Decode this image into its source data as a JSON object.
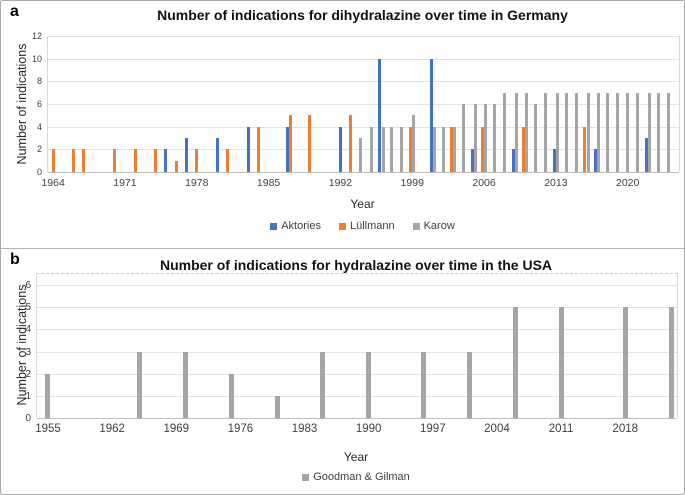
{
  "figure": {
    "panel_a_label": "a",
    "panel_b_label": "b"
  },
  "chart_data": [
    {
      "id": "germany",
      "type": "bar",
      "title": "Number of indications for dihydralazine over time in Germany",
      "xlabel": "Year",
      "ylabel": "Number of indications",
      "xlim": [
        1963.5,
        2025.0
      ],
      "ylim": [
        0,
        12
      ],
      "y_ticks": [
        0,
        2,
        4,
        6,
        8,
        10,
        12
      ],
      "x_ticks": [
        1964,
        1971,
        1978,
        1985,
        1992,
        1999,
        2006,
        2013,
        2020
      ],
      "grid": true,
      "legend_position": "bottom",
      "series": [
        {
          "name": "Aktories",
          "color": "#4472C4",
          "points": [
            [
              1975,
              2
            ],
            [
              1977,
              3
            ],
            [
              1980,
              3
            ],
            [
              1983,
              4
            ],
            [
              1987,
              4
            ],
            [
              1992,
              4
            ],
            [
              1996,
              10
            ],
            [
              2001,
              10
            ],
            [
              2005,
              2
            ],
            [
              2009,
              2
            ],
            [
              2013,
              2
            ],
            [
              2017,
              2
            ],
            [
              2022,
              3
            ]
          ]
        },
        {
          "name": "Lüllmann",
          "color": "#ED7D31",
          "points": [
            [
              1964,
              2
            ],
            [
              1966,
              2
            ],
            [
              1967,
              2
            ],
            [
              1970,
              2
            ],
            [
              1972,
              2
            ],
            [
              1974,
              2
            ],
            [
              1976,
              1
            ],
            [
              1978,
              2
            ],
            [
              1981,
              2
            ],
            [
              1984,
              4
            ],
            [
              1987,
              5
            ],
            [
              1989,
              5
            ],
            [
              1993,
              5
            ],
            [
              1999,
              4
            ],
            [
              2003,
              4
            ],
            [
              2006,
              4
            ],
            [
              2010,
              4
            ],
            [
              2016,
              4
            ]
          ]
        },
        {
          "name": "Karow",
          "color": "#A5A5A5",
          "points": [
            [
              1994,
              3
            ],
            [
              1995,
              4
            ],
            [
              1996,
              4
            ],
            [
              1997,
              4
            ],
            [
              1998,
              4
            ],
            [
              1999,
              5
            ],
            [
              2001,
              4
            ],
            [
              2002,
              4
            ],
            [
              2003,
              4
            ],
            [
              2004,
              6
            ],
            [
              2005,
              6
            ],
            [
              2006,
              6
            ],
            [
              2007,
              6
            ],
            [
              2008,
              7
            ],
            [
              2009,
              7
            ],
            [
              2010,
              7
            ],
            [
              2011,
              6
            ],
            [
              2012,
              7
            ],
            [
              2013,
              7
            ],
            [
              2014,
              7
            ],
            [
              2015,
              7
            ],
            [
              2016,
              7
            ],
            [
              2017,
              7
            ],
            [
              2018,
              7
            ],
            [
              2019,
              7
            ],
            [
              2020,
              7
            ],
            [
              2021,
              7
            ],
            [
              2022,
              7
            ],
            [
              2023,
              7
            ],
            [
              2024,
              7
            ]
          ]
        }
      ]
    },
    {
      "id": "usa",
      "type": "bar",
      "title": "Number of indications for hydralazine over time in the USA",
      "xlabel": "Year",
      "ylabel": "Number of indications",
      "xlim": [
        1953.8,
        2023.65
      ],
      "ylim": [
        0,
        6
      ],
      "y_ticks": [
        0,
        1,
        2,
        3,
        4,
        5,
        6
      ],
      "x_ticks": [
        1955,
        1962,
        1969,
        1976,
        1983,
        1990,
        1997,
        2004,
        2011,
        2018
      ],
      "grid": true,
      "legend_position": "bottom",
      "series": [
        {
          "name": "Goodman & Gilman",
          "color": "#A5A5A5",
          "points": [
            [
              1955,
              2
            ],
            [
              1965,
              3
            ],
            [
              1970,
              3
            ],
            [
              1975,
              2
            ],
            [
              1980,
              1
            ],
            [
              1985,
              3
            ],
            [
              1990,
              3
            ],
            [
              1996,
              3
            ],
            [
              2001,
              3
            ],
            [
              2006,
              5
            ],
            [
              2011,
              5
            ],
            [
              2018,
              5
            ],
            [
              2023,
              5
            ]
          ]
        }
      ]
    }
  ]
}
